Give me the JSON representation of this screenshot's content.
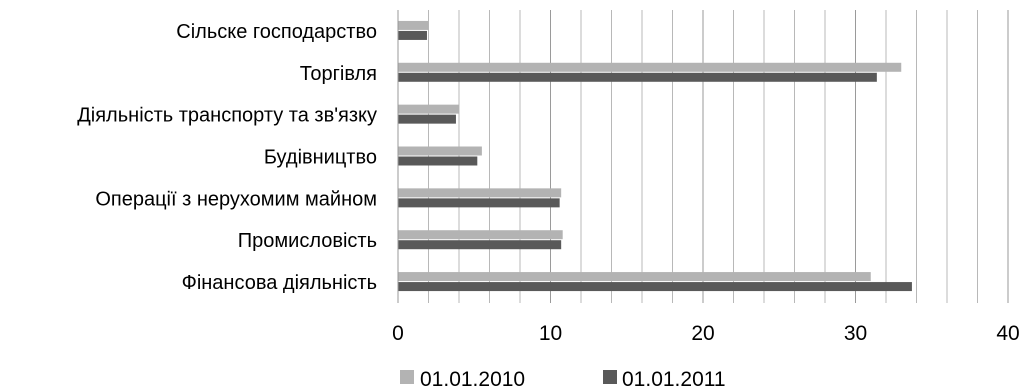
{
  "chart_data": {
    "type": "bar",
    "orientation": "horizontal",
    "categories": [
      "Сільске господарство",
      "Торгівля",
      "Діяльність транспорту та зв'язку",
      "Будівництво",
      "Операції з нерухомим майном",
      "Промисловість",
      "Фінансова діяльність"
    ],
    "series": [
      {
        "name": "01.01.2010",
        "color": "#b3b3b3",
        "values": [
          2.0,
          33.0,
          4.0,
          5.5,
          10.7,
          10.8,
          31.0
        ]
      },
      {
        "name": "01.01.2011",
        "color": "#595959",
        "values": [
          1.9,
          31.4,
          3.8,
          5.2,
          10.6,
          10.7,
          33.7
        ]
      }
    ],
    "x_ticks": [
      "0",
      "10",
      "20",
      "30",
      "40"
    ],
    "xlim": [
      0,
      40
    ],
    "minor_gridlines_every": 2,
    "grid": true,
    "legend": "bottom",
    "title": "",
    "xlabel": "",
    "ylabel": ""
  }
}
